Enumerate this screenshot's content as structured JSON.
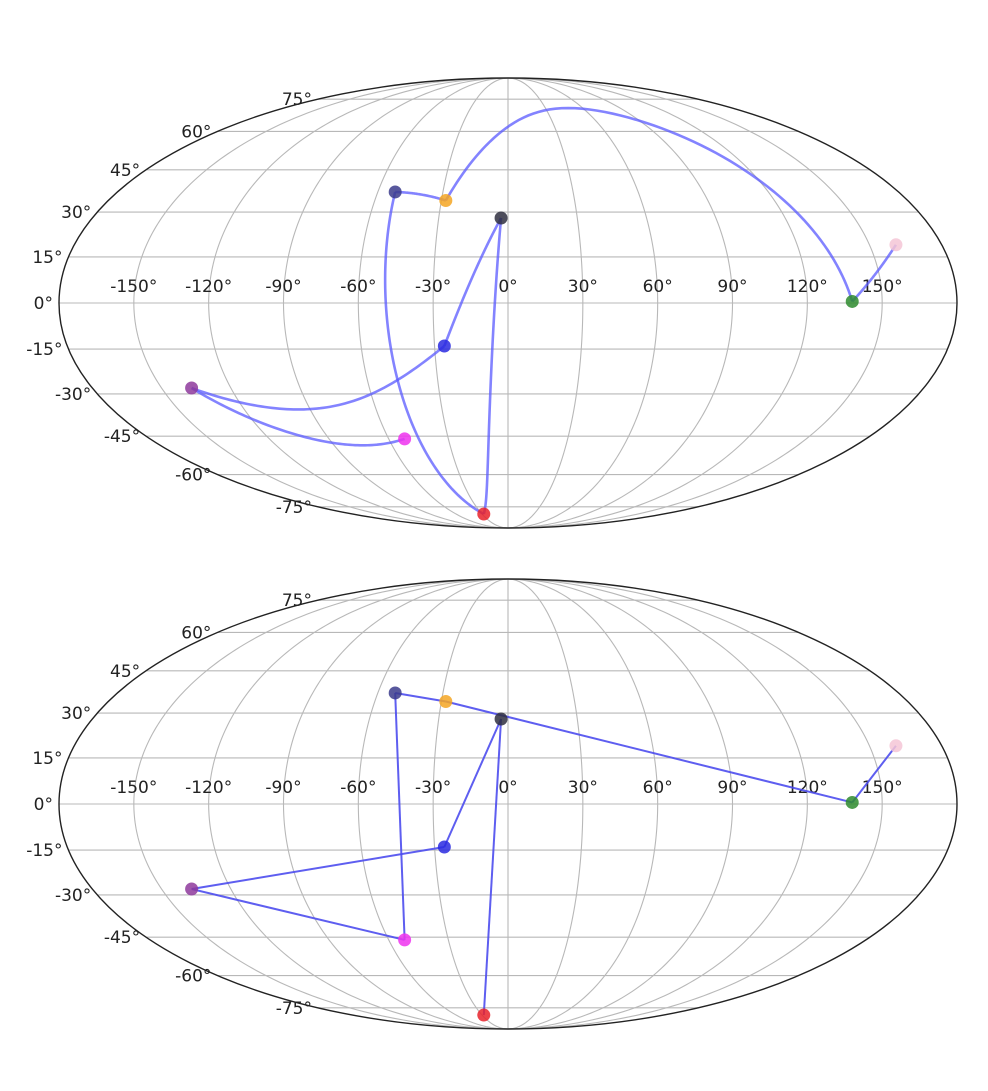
{
  "chart_data": [
    {
      "type": "scatter",
      "projection": "mollweide",
      "panel": "top",
      "connector": "great-circle",
      "xlim": [
        -180,
        180
      ],
      "ylim": [
        -90,
        90
      ],
      "grid": true,
      "x_ticks": [
        -150,
        -120,
        -90,
        -60,
        -30,
        0,
        30,
        60,
        90,
        120,
        150
      ],
      "y_ticks": [
        -75,
        -60,
        -45,
        -30,
        -15,
        0,
        15,
        30,
        45,
        60,
        75
      ],
      "x_tick_labels": [
        "-150°",
        "-120°",
        "-90°",
        "-60°",
        "-30°",
        "0°",
        "30°",
        "60°",
        "90°",
        "120°",
        "150°"
      ],
      "y_tick_labels": [
        "-75°",
        "-60°",
        "-45°",
        "-30°",
        "-15°",
        "0°",
        "15°",
        "30°",
        "45°",
        "60°",
        "75°"
      ],
      "line_color": "#5a5aff",
      "line_alpha": 0.75,
      "points": [
        {
          "lon": 161,
          "lat": 19,
          "color": "#f4c6d6"
        },
        {
          "lon": 138,
          "lat": 0.5,
          "color": "#2e8b2e"
        },
        {
          "lon": -28,
          "lat": 34,
          "color": "#f5a623"
        },
        {
          "lon": -52,
          "lat": 37,
          "color": "#3b3b8c"
        },
        {
          "lon": -28,
          "lat": -79,
          "color": "#e8222a"
        },
        {
          "lon": -3,
          "lat": 28,
          "color": "#2f2f3f"
        },
        {
          "lon": -26,
          "lat": -14,
          "color": "#2a2ae0"
        },
        {
          "lon": -137,
          "lat": -28,
          "color": "#8e3a9c"
        },
        {
          "lon": -52,
          "lat": -46,
          "color": "#ee33ee"
        }
      ]
    },
    {
      "type": "scatter",
      "projection": "mollweide",
      "panel": "bottom",
      "connector": "straight",
      "xlim": [
        -180,
        180
      ],
      "ylim": [
        -90,
        90
      ],
      "grid": true,
      "x_ticks": [
        -150,
        -120,
        -90,
        -60,
        -30,
        0,
        30,
        60,
        90,
        120,
        150
      ],
      "y_ticks": [
        -75,
        -60,
        -45,
        -30,
        -15,
        0,
        15,
        30,
        45,
        60,
        75
      ],
      "x_tick_labels": [
        "-150°",
        "-120°",
        "-90°",
        "-60°",
        "-30°",
        "0°",
        "30°",
        "60°",
        "90°",
        "120°",
        "150°"
      ],
      "y_tick_labels": [
        "-75°",
        "-60°",
        "-45°",
        "-30°",
        "-15°",
        "0°",
        "15°",
        "30°",
        "45°",
        "60°",
        "75°"
      ],
      "line_color": "#4c4cee",
      "line_alpha": 0.9,
      "points": [
        {
          "lon": 161,
          "lat": 19,
          "color": "#f4c6d6"
        },
        {
          "lon": 138,
          "lat": 0.5,
          "color": "#2e8b2e"
        },
        {
          "lon": -28,
          "lat": 34,
          "color": "#f5a623"
        },
        {
          "lon": -52,
          "lat": 37,
          "color": "#3b3b8c"
        },
        {
          "lon": -52,
          "lat": -46,
          "color": "#ee33ee"
        },
        {
          "lon": -137,
          "lat": -28,
          "color": "#8e3a9c"
        },
        {
          "lon": -26,
          "lat": -14,
          "color": "#2a2ae0"
        },
        {
          "lon": -3,
          "lat": 28,
          "color": "#2f2f3f"
        },
        {
          "lon": -28,
          "lat": -79,
          "color": "#e8222a"
        }
      ]
    }
  ]
}
